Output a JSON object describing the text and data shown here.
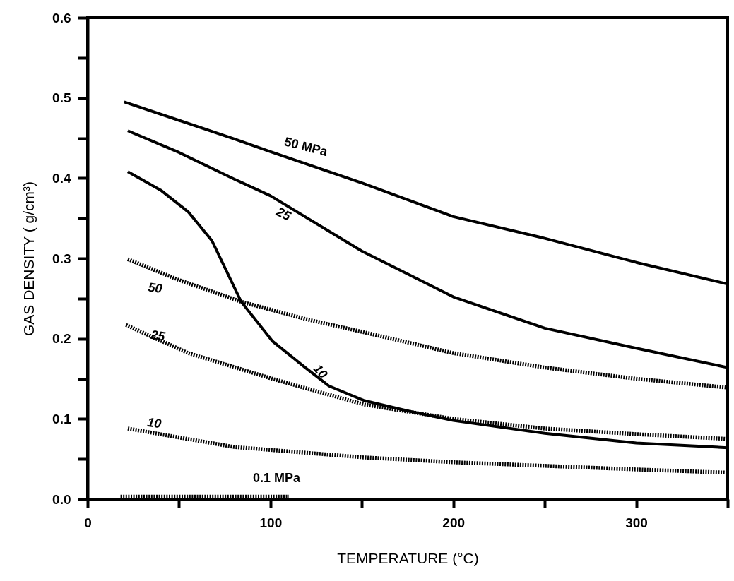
{
  "chart_data": {
    "type": "line",
    "xlabel": "TEMPERATURE (°C)",
    "ylabel": "GAS DENSITY ( g/cm³)",
    "xlim": [
      0,
      350
    ],
    "ylim": [
      0,
      0.6
    ],
    "xticks": [
      0,
      {
        "value": 50,
        "label": null
      },
      100,
      {
        "value": 150,
        "label": null
      },
      200,
      {
        "value": 250,
        "label": null
      },
      300,
      {
        "value": 350,
        "label": null
      }
    ],
    "yticks": [
      {
        "value": 0,
        "label": "0.0"
      },
      {
        "value": 0.05,
        "label": null
      },
      0.1,
      {
        "value": 0.15,
        "label": null
      },
      0.2,
      {
        "value": 0.25,
        "label": null
      },
      0.3,
      {
        "value": 0.35,
        "label": null
      },
      0.4,
      {
        "value": 0.45,
        "label": null
      },
      0.5,
      {
        "value": 0.55,
        "label": null
      },
      0.6
    ],
    "grid": false,
    "marker": "none",
    "series": [
      {
        "name": "50 MPa",
        "color": "#000000",
        "line_style": "solid",
        "x": [
          20,
          50,
          80,
          100,
          150,
          200,
          250,
          300,
          350
        ],
        "values": [
          0.495,
          0.472,
          0.449,
          0.433,
          0.394,
          0.352,
          0.325,
          0.295,
          0.268
        ]
      },
      {
        "name": "25",
        "color": "#000000",
        "line_style": "solid",
        "x": [
          22,
          50,
          80,
          100,
          150,
          200,
          250,
          300,
          350
        ],
        "values": [
          0.459,
          0.432,
          0.399,
          0.378,
          0.309,
          0.252,
          0.213,
          0.188,
          0.164
        ]
      },
      {
        "name": "10",
        "color": "#000000",
        "line_style": "solid",
        "x": [
          22,
          40,
          55,
          68,
          84,
          101,
          119,
          132,
          151,
          175,
          200,
          250,
          300,
          350
        ],
        "values": [
          0.408,
          0.385,
          0.358,
          0.322,
          0.246,
          0.197,
          0.164,
          0.141,
          0.123,
          0.11,
          0.098,
          0.082,
          0.07,
          0.064
        ]
      },
      {
        "name": "50",
        "color": "#000000",
        "line_style": "dashed",
        "x": [
          22,
          50,
          84,
          120,
          151,
          200,
          250,
          300,
          350
        ],
        "values": [
          0.299,
          0.273,
          0.246,
          0.224,
          0.208,
          0.182,
          0.164,
          0.15,
          0.139
        ]
      },
      {
        "name": "25",
        "color": "#000000",
        "line_style": "dashed",
        "x": [
          21,
          55,
          101,
          151,
          200,
          250,
          300,
          350
        ],
        "values": [
          0.217,
          0.182,
          0.15,
          0.118,
          0.1,
          0.088,
          0.081,
          0.075
        ]
      },
      {
        "name": "10",
        "color": "#000000",
        "line_style": "dashed",
        "x": [
          22,
          80,
          151,
          200,
          300,
          350
        ],
        "values": [
          0.088,
          0.065,
          0.052,
          0.046,
          0.037,
          0.033
        ]
      },
      {
        "name": "0.1 MPa",
        "color": "#000000",
        "line_style": "dashed",
        "x": [
          18,
          110
        ],
        "values": [
          0.003,
          0.003
        ]
      }
    ]
  }
}
